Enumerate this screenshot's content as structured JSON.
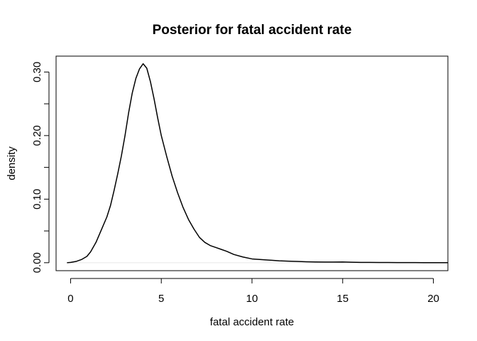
{
  "chart_data": {
    "type": "line",
    "title": "Posterior for fatal accident rate",
    "xlabel": "fatal accident rate",
    "ylabel": "density",
    "xlim": [
      -0.8,
      20.8
    ],
    "ylim": [
      -0.0125,
      0.325
    ],
    "x_ticks": [
      0,
      5,
      10,
      15,
      20
    ],
    "x_tick_labels": [
      "0",
      "5",
      "10",
      "15",
      "20"
    ],
    "y_ticks": [
      0.0,
      0.1,
      0.2,
      0.3
    ],
    "y_tick_labels": [
      "0.00",
      "0.10",
      "0.20",
      "0.30"
    ],
    "y_minor_ticks": [
      0.05,
      0.15,
      0.25
    ],
    "grid": false,
    "legend": "none",
    "line_color": "#000000",
    "baseline_color": "#e6e6e6",
    "series": [
      {
        "x": [
          -0.2,
          0.0,
          0.3,
          0.6,
          0.9,
          1.1,
          1.4,
          1.7,
          2.0,
          2.2,
          2.4,
          2.6,
          2.8,
          3.0,
          3.2,
          3.4,
          3.6,
          3.8,
          4.0,
          4.2,
          4.4,
          4.6,
          4.8,
          5.0,
          5.3,
          5.6,
          5.9,
          6.2,
          6.5,
          6.8,
          7.1,
          7.4,
          7.7,
          8.0,
          8.3,
          8.6,
          9.0,
          9.5,
          10.0,
          10.5,
          11.0,
          11.5,
          12.0,
          12.5,
          13.0,
          13.5,
          14.0,
          14.5,
          15.0,
          15.5,
          16.0,
          16.5,
          17.0,
          17.5,
          18.0,
          18.5,
          19.0,
          19.5,
          20.0,
          20.5,
          20.8
        ],
        "y": [
          0.0,
          0.0005,
          0.002,
          0.005,
          0.01,
          0.017,
          0.032,
          0.052,
          0.072,
          0.09,
          0.114,
          0.14,
          0.168,
          0.2,
          0.236,
          0.267,
          0.29,
          0.305,
          0.313,
          0.306,
          0.285,
          0.258,
          0.228,
          0.2,
          0.167,
          0.136,
          0.11,
          0.087,
          0.068,
          0.053,
          0.04,
          0.032,
          0.027,
          0.024,
          0.021,
          0.018,
          0.013,
          0.009,
          0.006,
          0.005,
          0.004,
          0.003,
          0.0025,
          0.002,
          0.0015,
          0.0012,
          0.001,
          0.001,
          0.0012,
          0.0008,
          0.0005,
          0.0005,
          0.0004,
          0.0003,
          0.0002,
          0.0002,
          0.0002,
          0.0001,
          0.0001,
          0.0001,
          0.0001
        ]
      }
    ]
  }
}
